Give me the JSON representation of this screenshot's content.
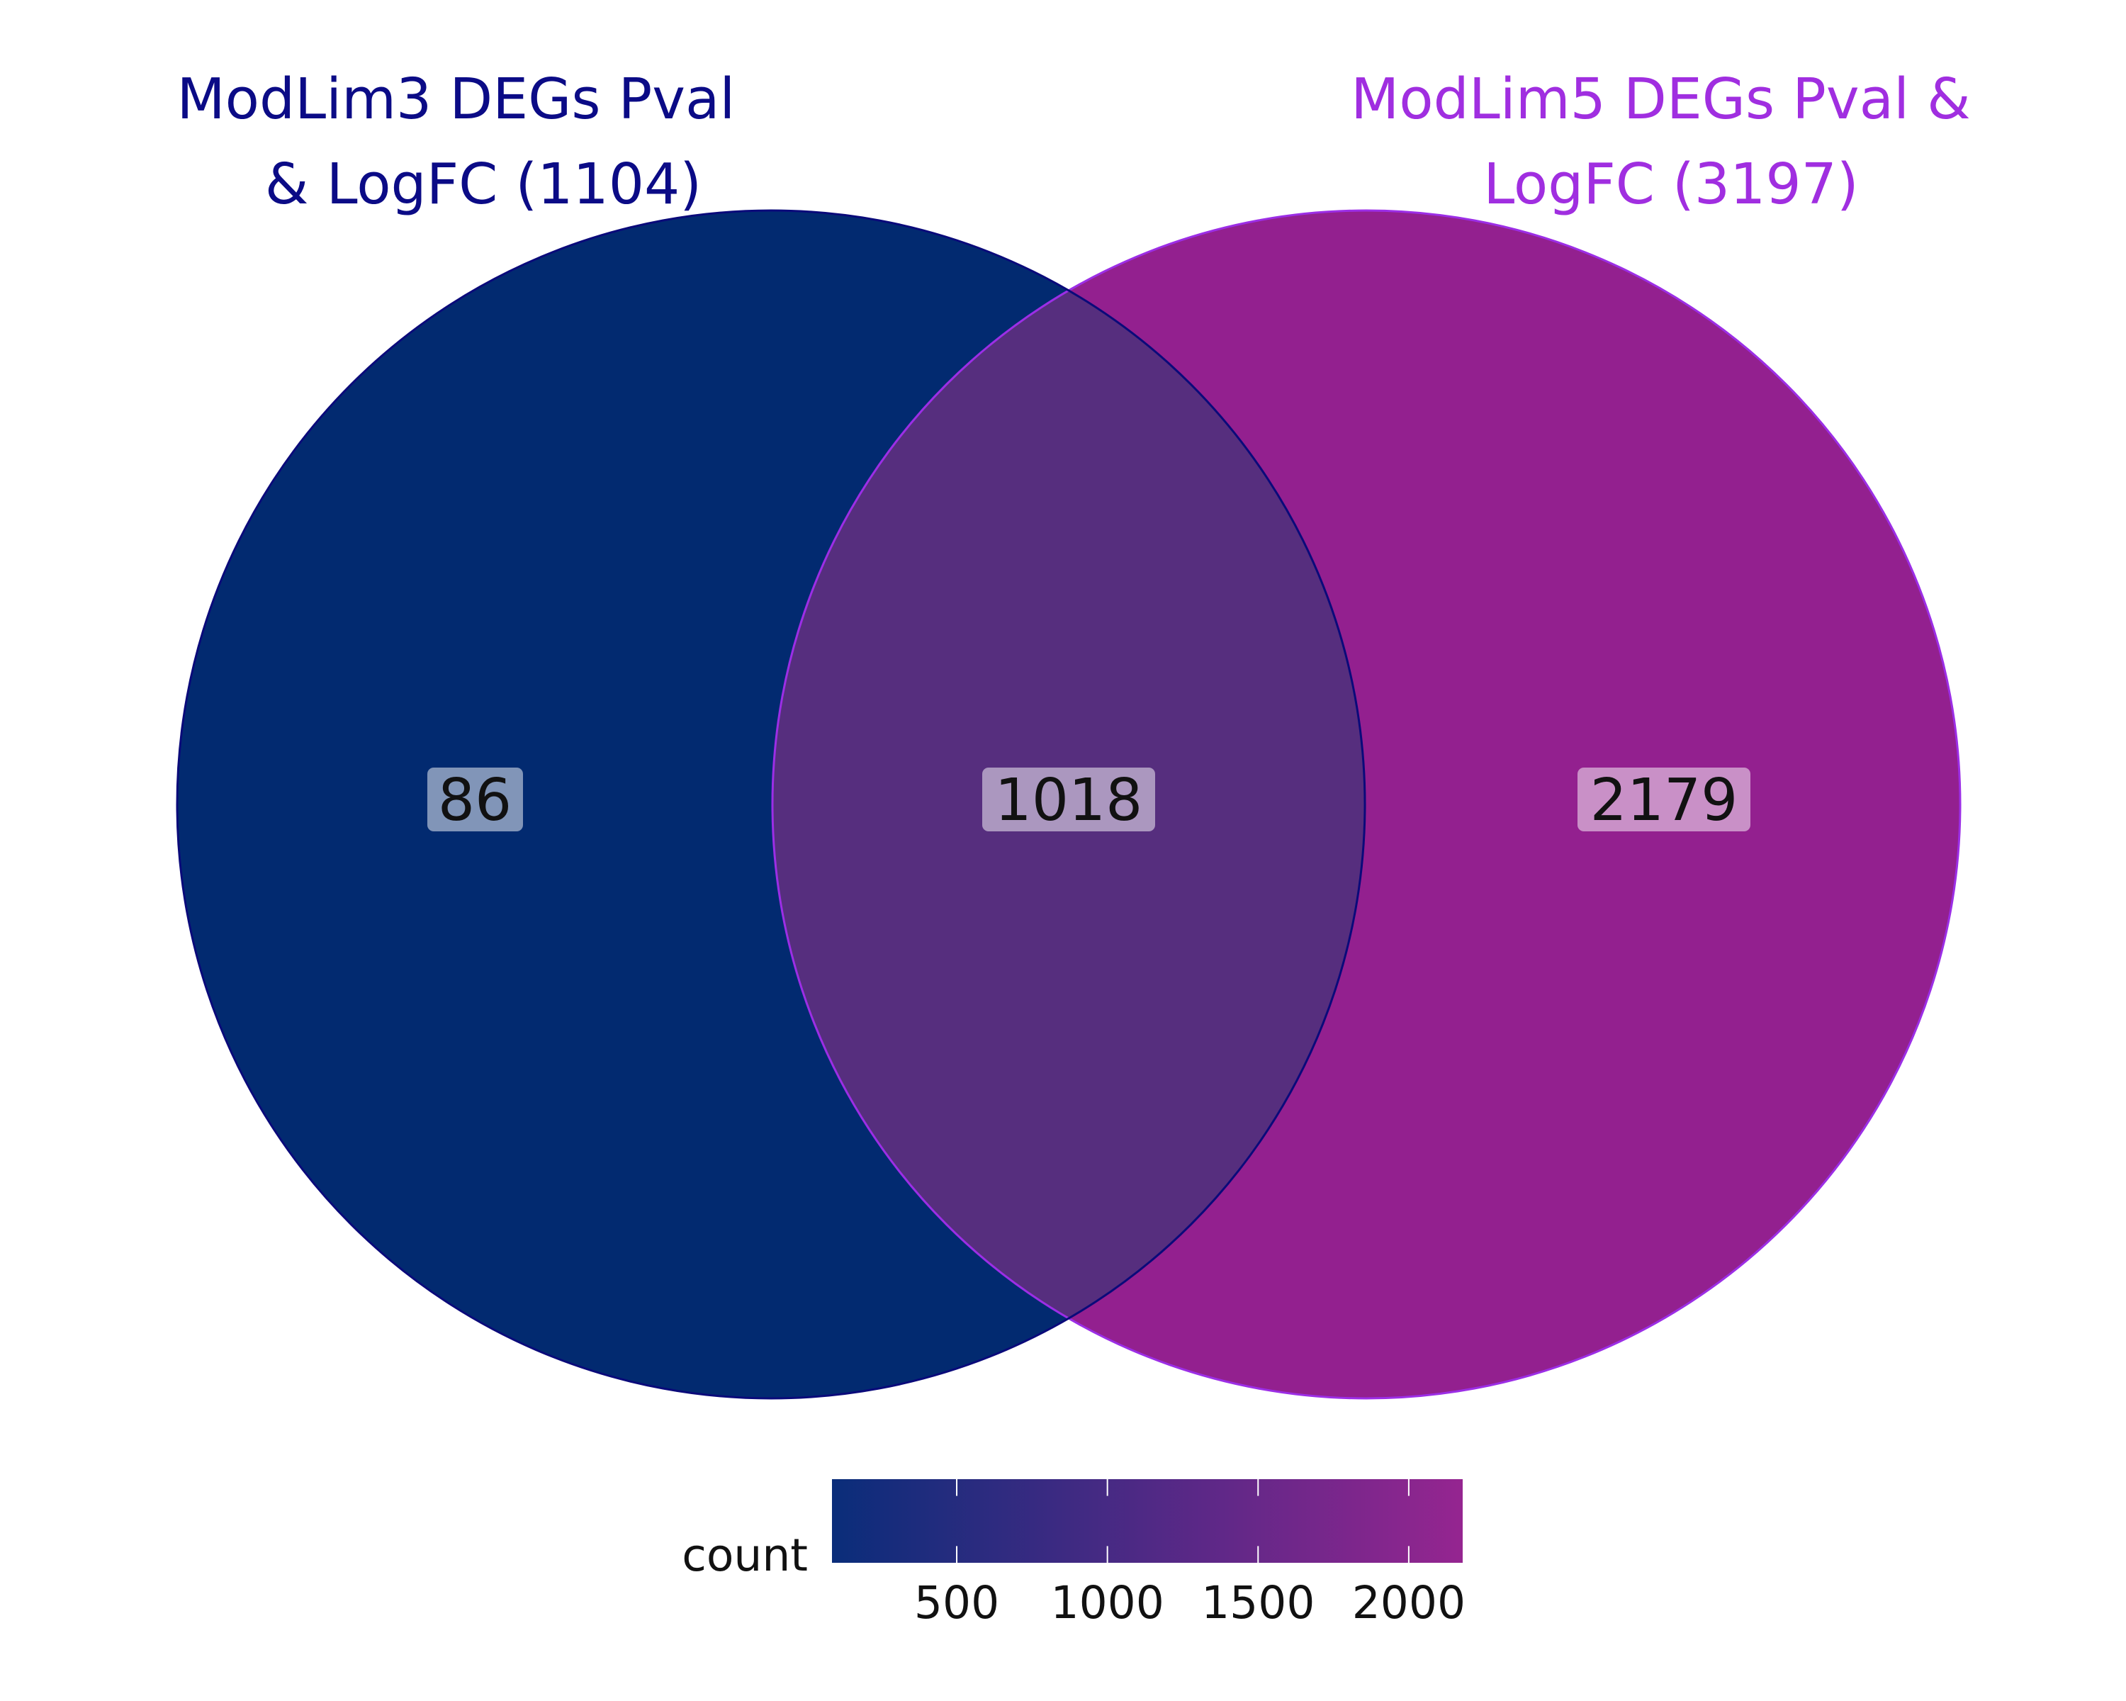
{
  "colors": {
    "set_a_fill": "#022a70",
    "set_a_stroke": "#0a0a7a",
    "set_a_title": "#0b0b86",
    "set_b_fill": "#93208f",
    "set_b_stroke": "#9c2ee6",
    "set_b_title": "#a02ee0",
    "intersection_fill": "#562e7e",
    "label_box": "#ffffff",
    "gradient_low": "#0a2d7a",
    "gradient_high": "#952590",
    "text": "#111111"
  },
  "sets": [
    {
      "title_lines": [
        "ModLim3 DEGs Pval",
        "& LogFC (1104)"
      ],
      "total": 1104
    },
    {
      "title_lines": [
        "ModLim5 DEGs Pval &",
        "LogFC (3197)"
      ],
      "total": 3197
    }
  ],
  "regions": {
    "only_a": "86",
    "intersection": "1018",
    "only_b": "2179"
  },
  "legend": {
    "title": "count",
    "min": 86,
    "max": 2179,
    "ticks": [
      {
        "value": 500,
        "label": "500"
      },
      {
        "value": 1000,
        "label": "1000"
      },
      {
        "value": 1500,
        "label": "1500"
      },
      {
        "value": 2000,
        "label": "2000"
      }
    ]
  }
}
